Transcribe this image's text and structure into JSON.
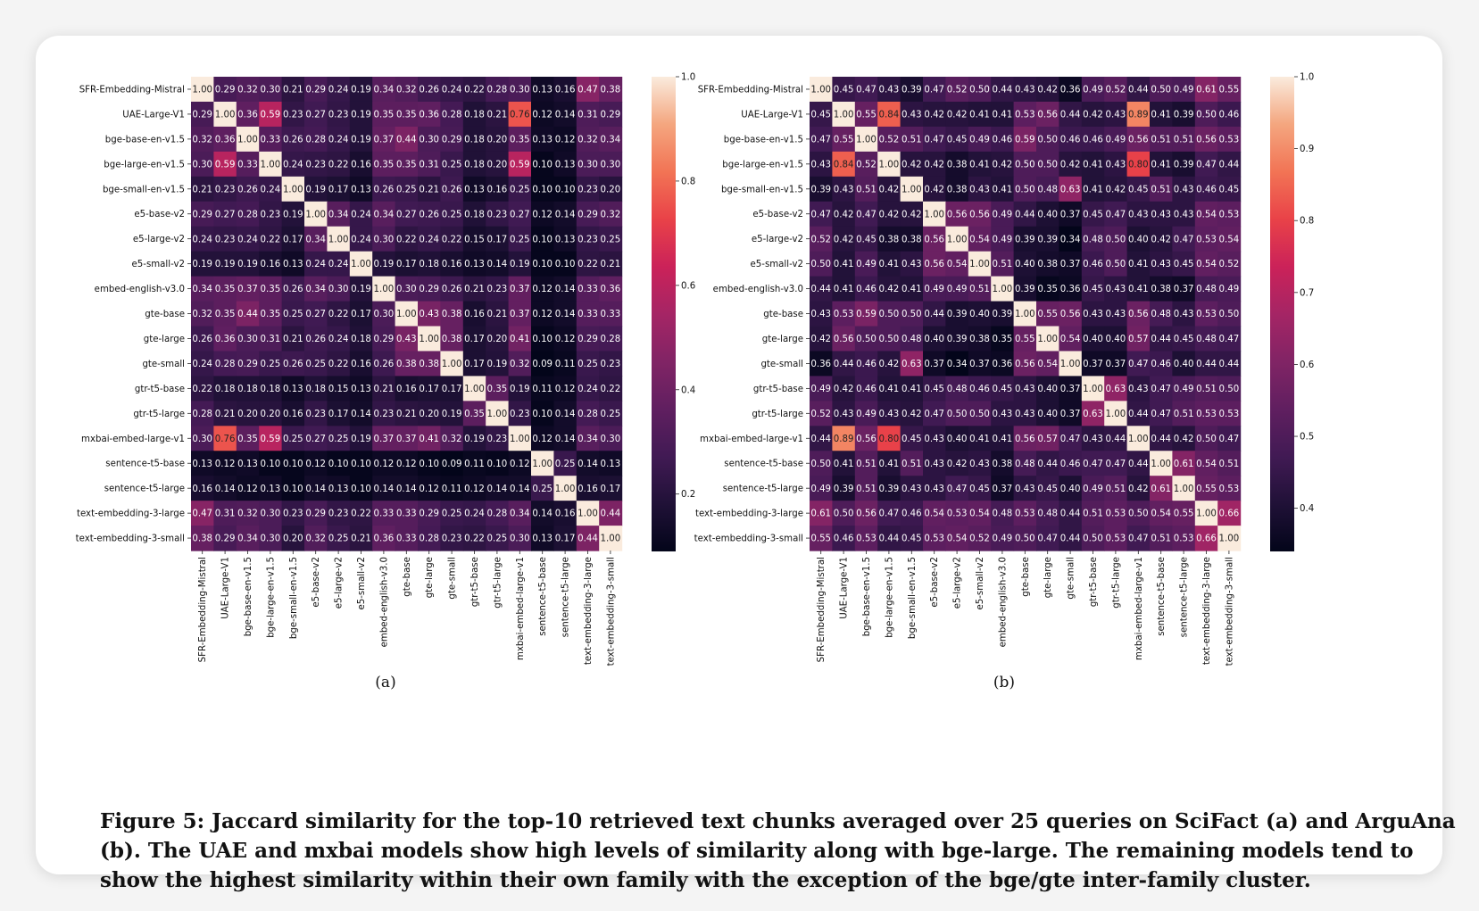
{
  "figure": {
    "caption": "Figure 5: Jaccard similarity for the top-10 retrieved text chunks averaged over 25 queries on SciFact (a) and ArguAna (b). The UAE and mxbai models show high levels of similarity along with bge-large. The remaining models tend to show the highest similarity within their own family with the exception of the bge/gte inter-family cluster."
  },
  "chart_data": [
    {
      "type": "heatmap",
      "panel_label": "(a)",
      "labels": [
        "SFR-Embedding-Mistral",
        "UAE-Large-V1",
        "bge-base-en-v1.5",
        "bge-large-en-v1.5",
        "bge-small-en-v1.5",
        "e5-base-v2",
        "e5-large-v2",
        "e5-small-v2",
        "embed-english-v3.0",
        "gte-base",
        "gte-large",
        "gte-small",
        "gtr-t5-base",
        "gtr-t5-large",
        "mxbai-embed-large-v1",
        "sentence-t5-base",
        "sentence-t5-large",
        "text-embedding-3-large",
        "text-embedding-3-small"
      ],
      "matrix": [
        [
          1.0,
          0.29,
          0.32,
          0.3,
          0.21,
          0.29,
          0.24,
          0.19,
          0.34,
          0.32,
          0.26,
          0.24,
          0.22,
          0.28,
          0.3,
          0.13,
          0.16,
          0.47,
          0.38
        ],
        [
          0.29,
          1.0,
          0.36,
          0.59,
          0.23,
          0.27,
          0.23,
          0.19,
          0.35,
          0.35,
          0.36,
          0.28,
          0.18,
          0.21,
          0.76,
          0.12,
          0.14,
          0.31,
          0.29
        ],
        [
          0.32,
          0.36,
          1.0,
          0.33,
          0.26,
          0.28,
          0.24,
          0.19,
          0.37,
          0.44,
          0.3,
          0.29,
          0.18,
          0.2,
          0.35,
          0.13,
          0.12,
          0.32,
          0.34
        ],
        [
          0.3,
          0.59,
          0.33,
          1.0,
          0.24,
          0.23,
          0.22,
          0.16,
          0.35,
          0.35,
          0.31,
          0.25,
          0.18,
          0.2,
          0.59,
          0.1,
          0.13,
          0.3,
          0.3
        ],
        [
          0.21,
          0.23,
          0.26,
          0.24,
          1.0,
          0.19,
          0.17,
          0.13,
          0.26,
          0.25,
          0.21,
          0.26,
          0.13,
          0.16,
          0.25,
          0.1,
          0.1,
          0.23,
          0.2
        ],
        [
          0.29,
          0.27,
          0.28,
          0.23,
          0.19,
          1.0,
          0.34,
          0.24,
          0.34,
          0.27,
          0.26,
          0.25,
          0.18,
          0.23,
          0.27,
          0.12,
          0.14,
          0.29,
          0.32
        ],
        [
          0.24,
          0.23,
          0.24,
          0.22,
          0.17,
          0.34,
          1.0,
          0.24,
          0.3,
          0.22,
          0.24,
          0.22,
          0.15,
          0.17,
          0.25,
          0.1,
          0.13,
          0.23,
          0.25
        ],
        [
          0.19,
          0.19,
          0.19,
          0.16,
          0.13,
          0.24,
          0.24,
          1.0,
          0.19,
          0.17,
          0.18,
          0.16,
          0.13,
          0.14,
          0.19,
          0.1,
          0.1,
          0.22,
          0.21
        ],
        [
          0.34,
          0.35,
          0.37,
          0.35,
          0.26,
          0.34,
          0.3,
          0.19,
          1.0,
          0.3,
          0.29,
          0.26,
          0.21,
          0.23,
          0.37,
          0.12,
          0.14,
          0.33,
          0.36
        ],
        [
          0.32,
          0.35,
          0.44,
          0.35,
          0.25,
          0.27,
          0.22,
          0.17,
          0.3,
          1.0,
          0.43,
          0.38,
          0.16,
          0.21,
          0.37,
          0.12,
          0.14,
          0.33,
          0.33
        ],
        [
          0.26,
          0.36,
          0.3,
          0.31,
          0.21,
          0.26,
          0.24,
          0.18,
          0.29,
          0.43,
          1.0,
          0.38,
          0.17,
          0.2,
          0.41,
          0.1,
          0.12,
          0.29,
          0.28
        ],
        [
          0.24,
          0.28,
          0.29,
          0.25,
          0.26,
          0.25,
          0.22,
          0.16,
          0.26,
          0.38,
          0.38,
          1.0,
          0.17,
          0.19,
          0.32,
          0.09,
          0.11,
          0.25,
          0.23
        ],
        [
          0.22,
          0.18,
          0.18,
          0.18,
          0.13,
          0.18,
          0.15,
          0.13,
          0.21,
          0.16,
          0.17,
          0.17,
          1.0,
          0.35,
          0.19,
          0.11,
          0.12,
          0.24,
          0.22
        ],
        [
          0.28,
          0.21,
          0.2,
          0.2,
          0.16,
          0.23,
          0.17,
          0.14,
          0.23,
          0.21,
          0.2,
          0.19,
          0.35,
          1.0,
          0.23,
          0.1,
          0.14,
          0.28,
          0.25
        ],
        [
          0.3,
          0.76,
          0.35,
          0.59,
          0.25,
          0.27,
          0.25,
          0.19,
          0.37,
          0.37,
          0.41,
          0.32,
          0.19,
          0.23,
          1.0,
          0.12,
          0.14,
          0.34,
          0.3
        ],
        [
          0.13,
          0.12,
          0.13,
          0.1,
          0.1,
          0.12,
          0.1,
          0.1,
          0.12,
          0.12,
          0.1,
          0.09,
          0.11,
          0.1,
          0.12,
          1.0,
          0.25,
          0.14,
          0.13
        ],
        [
          0.16,
          0.14,
          0.12,
          0.13,
          0.1,
          0.14,
          0.13,
          0.1,
          0.14,
          0.14,
          0.12,
          0.11,
          0.12,
          0.14,
          0.14,
          0.25,
          1.0,
          0.16,
          0.17
        ],
        [
          0.47,
          0.31,
          0.32,
          0.3,
          0.23,
          0.29,
          0.23,
          0.22,
          0.33,
          0.33,
          0.29,
          0.25,
          0.24,
          0.28,
          0.34,
          0.14,
          0.16,
          1.0,
          0.44
        ],
        [
          0.38,
          0.29,
          0.34,
          0.3,
          0.2,
          0.32,
          0.25,
          0.21,
          0.36,
          0.33,
          0.28,
          0.23,
          0.22,
          0.25,
          0.3,
          0.13,
          0.17,
          0.44,
          1.0
        ]
      ],
      "vmin": 0.09,
      "vmax": 1.0,
      "colorbar_ticks": [
        "0.2",
        "0.4",
        "0.6",
        "0.8",
        "1.0"
      ],
      "colormap": "rocket"
    },
    {
      "type": "heatmap",
      "panel_label": "(b)",
      "labels": [
        "SFR-Embedding-Mistral",
        "UAE-Large-V1",
        "bge-base-en-v1.5",
        "bge-large-en-v1.5",
        "bge-small-en-v1.5",
        "e5-base-v2",
        "e5-large-v2",
        "e5-small-v2",
        "embed-english-v3.0",
        "gte-base",
        "gte-large",
        "gte-small",
        "gtr-t5-base",
        "gtr-t5-large",
        "mxbai-embed-large-v1",
        "sentence-t5-base",
        "sentence-t5-large",
        "text-embedding-3-large",
        "text-embedding-3-small"
      ],
      "matrix": [
        [
          1.0,
          0.45,
          0.47,
          0.43,
          0.39,
          0.47,
          0.52,
          0.5,
          0.44,
          0.43,
          0.42,
          0.36,
          0.49,
          0.52,
          0.44,
          0.5,
          0.49,
          0.61,
          0.55
        ],
        [
          0.45,
          1.0,
          0.55,
          0.84,
          0.43,
          0.42,
          0.42,
          0.41,
          0.41,
          0.53,
          0.56,
          0.44,
          0.42,
          0.43,
          0.89,
          0.41,
          0.39,
          0.5,
          0.46
        ],
        [
          0.47,
          0.55,
          1.0,
          0.52,
          0.51,
          0.47,
          0.45,
          0.49,
          0.46,
          0.59,
          0.5,
          0.46,
          0.46,
          0.49,
          0.56,
          0.51,
          0.51,
          0.56,
          0.53
        ],
        [
          0.43,
          0.84,
          0.52,
          1.0,
          0.42,
          0.42,
          0.38,
          0.41,
          0.42,
          0.5,
          0.5,
          0.42,
          0.41,
          0.43,
          0.8,
          0.41,
          0.39,
          0.47,
          0.44
        ],
        [
          0.39,
          0.43,
          0.51,
          0.42,
          1.0,
          0.42,
          0.38,
          0.43,
          0.41,
          0.5,
          0.48,
          0.63,
          0.41,
          0.42,
          0.45,
          0.51,
          0.43,
          0.46,
          0.45
        ],
        [
          0.47,
          0.42,
          0.47,
          0.42,
          0.42,
          1.0,
          0.56,
          0.56,
          0.49,
          0.44,
          0.4,
          0.37,
          0.45,
          0.47,
          0.43,
          0.43,
          0.43,
          0.54,
          0.53
        ],
        [
          0.52,
          0.42,
          0.45,
          0.38,
          0.38,
          0.56,
          1.0,
          0.54,
          0.49,
          0.39,
          0.39,
          0.34,
          0.48,
          0.5,
          0.4,
          0.42,
          0.47,
          0.53,
          0.54
        ],
        [
          0.5,
          0.41,
          0.49,
          0.41,
          0.43,
          0.56,
          0.54,
          1.0,
          0.51,
          0.4,
          0.38,
          0.37,
          0.46,
          0.5,
          0.41,
          0.43,
          0.45,
          0.54,
          0.52
        ],
        [
          0.44,
          0.41,
          0.46,
          0.42,
          0.41,
          0.49,
          0.49,
          0.51,
          1.0,
          0.39,
          0.35,
          0.36,
          0.45,
          0.43,
          0.41,
          0.38,
          0.37,
          0.48,
          0.49
        ],
        [
          0.43,
          0.53,
          0.59,
          0.5,
          0.5,
          0.44,
          0.39,
          0.4,
          0.39,
          1.0,
          0.55,
          0.56,
          0.43,
          0.43,
          0.56,
          0.48,
          0.43,
          0.53,
          0.5
        ],
        [
          0.42,
          0.56,
          0.5,
          0.5,
          0.48,
          0.4,
          0.39,
          0.38,
          0.35,
          0.55,
          1.0,
          0.54,
          0.4,
          0.4,
          0.57,
          0.44,
          0.45,
          0.48,
          0.47
        ],
        [
          0.36,
          0.44,
          0.46,
          0.42,
          0.63,
          0.37,
          0.34,
          0.37,
          0.36,
          0.56,
          0.54,
          1.0,
          0.37,
          0.37,
          0.47,
          0.46,
          0.4,
          0.44,
          0.44
        ],
        [
          0.49,
          0.42,
          0.46,
          0.41,
          0.41,
          0.45,
          0.48,
          0.46,
          0.45,
          0.43,
          0.4,
          0.37,
          1.0,
          0.63,
          0.43,
          0.47,
          0.49,
          0.51,
          0.5
        ],
        [
          0.52,
          0.43,
          0.49,
          0.43,
          0.42,
          0.47,
          0.5,
          0.5,
          0.43,
          0.43,
          0.4,
          0.37,
          0.63,
          1.0,
          0.44,
          0.47,
          0.51,
          0.53,
          0.53
        ],
        [
          0.44,
          0.89,
          0.56,
          0.8,
          0.45,
          0.43,
          0.4,
          0.41,
          0.41,
          0.56,
          0.57,
          0.47,
          0.43,
          0.44,
          1.0,
          0.44,
          0.42,
          0.5,
          0.47
        ],
        [
          0.5,
          0.41,
          0.51,
          0.41,
          0.51,
          0.43,
          0.42,
          0.43,
          0.38,
          0.48,
          0.44,
          0.46,
          0.47,
          0.47,
          0.44,
          1.0,
          0.61,
          0.54,
          0.51
        ],
        [
          0.49,
          0.39,
          0.51,
          0.39,
          0.43,
          0.43,
          0.47,
          0.45,
          0.37,
          0.43,
          0.45,
          0.4,
          0.49,
          0.51,
          0.42,
          0.61,
          1.0,
          0.55,
          0.53
        ],
        [
          0.61,
          0.5,
          0.56,
          0.47,
          0.46,
          0.54,
          0.53,
          0.54,
          0.48,
          0.53,
          0.48,
          0.44,
          0.51,
          0.53,
          0.5,
          0.54,
          0.55,
          1.0,
          0.66
        ],
        [
          0.55,
          0.46,
          0.53,
          0.44,
          0.45,
          0.53,
          0.54,
          0.52,
          0.49,
          0.5,
          0.47,
          0.44,
          0.5,
          0.53,
          0.47,
          0.51,
          0.53,
          0.66,
          1.0
        ]
      ],
      "vmin": 0.34,
      "vmax": 1.0,
      "colorbar_ticks": [
        "0.4",
        "0.5",
        "0.6",
        "0.7",
        "0.8",
        "0.9",
        "1.0"
      ],
      "colormap": "rocket"
    }
  ]
}
